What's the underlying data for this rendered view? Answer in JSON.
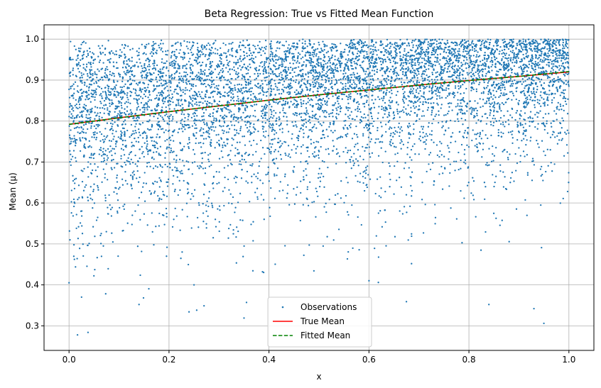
{
  "chart_data": {
    "type": "scatter",
    "title": "Beta Regression: True vs Fitted Mean Function",
    "xlabel": "x",
    "ylabel": "Mean (μ)",
    "xlim": [
      -0.05,
      1.05
    ],
    "ylim": [
      0.24,
      1.035
    ],
    "xticks": [
      0.0,
      0.2,
      0.4,
      0.6,
      0.8,
      1.0
    ],
    "xtick_labels": [
      "0.0",
      "0.2",
      "0.4",
      "0.6",
      "0.8",
      "1.0"
    ],
    "yticks": [
      0.3,
      0.4,
      0.5,
      0.6,
      0.7,
      0.8,
      0.9,
      1.0
    ],
    "ytick_labels": [
      "0.3",
      "0.4",
      "0.5",
      "0.6",
      "0.7",
      "0.8",
      "0.9",
      "1.0"
    ],
    "grid": true,
    "legend_position": "bottom-center",
    "series": [
      {
        "name": "Observations",
        "kind": "scatter",
        "color": "#1f77b4",
        "description": "~10000 points, x uniform on [0,1], y ~ Beta with mean following the curve",
        "outliers": [
          {
            "x": 0.0,
            "y": 0.405
          },
          {
            "x": 0.017,
            "y": 0.278
          },
          {
            "x": 0.025,
            "y": 0.37
          },
          {
            "x": 0.038,
            "y": 0.284
          },
          {
            "x": 0.14,
            "y": 0.352
          },
          {
            "x": 0.195,
            "y": 0.47
          },
          {
            "x": 0.24,
            "y": 0.334
          },
          {
            "x": 0.25,
            "y": 0.4
          },
          {
            "x": 0.27,
            "y": 0.349
          },
          {
            "x": 0.35,
            "y": 0.319
          },
          {
            "x": 0.355,
            "y": 0.357
          },
          {
            "x": 0.387,
            "y": 0.432
          },
          {
            "x": 0.6,
            "y": 0.41
          },
          {
            "x": 0.675,
            "y": 0.359
          },
          {
            "x": 0.84,
            "y": 0.352
          },
          {
            "x": 0.93,
            "y": 0.342
          },
          {
            "x": 0.95,
            "y": 0.306
          }
        ]
      },
      {
        "name": "True Mean",
        "kind": "line",
        "color": "#ff0000",
        "dash": "solid",
        "x": [
          0.0,
          0.1,
          0.2,
          0.3,
          0.4,
          0.5,
          0.6,
          0.7,
          0.8,
          0.9,
          1.0
        ],
        "y": [
          0.792,
          0.808,
          0.823,
          0.837,
          0.851,
          0.864,
          0.876,
          0.888,
          0.899,
          0.909,
          0.92
        ]
      },
      {
        "name": "Fitted Mean",
        "kind": "line",
        "color": "#008000",
        "dash": "dashed",
        "x": [
          0.0,
          0.1,
          0.2,
          0.3,
          0.4,
          0.5,
          0.6,
          0.7,
          0.8,
          0.9,
          1.0
        ],
        "y": [
          0.792,
          0.808,
          0.823,
          0.837,
          0.851,
          0.864,
          0.876,
          0.888,
          0.899,
          0.909,
          0.921
        ]
      }
    ]
  }
}
